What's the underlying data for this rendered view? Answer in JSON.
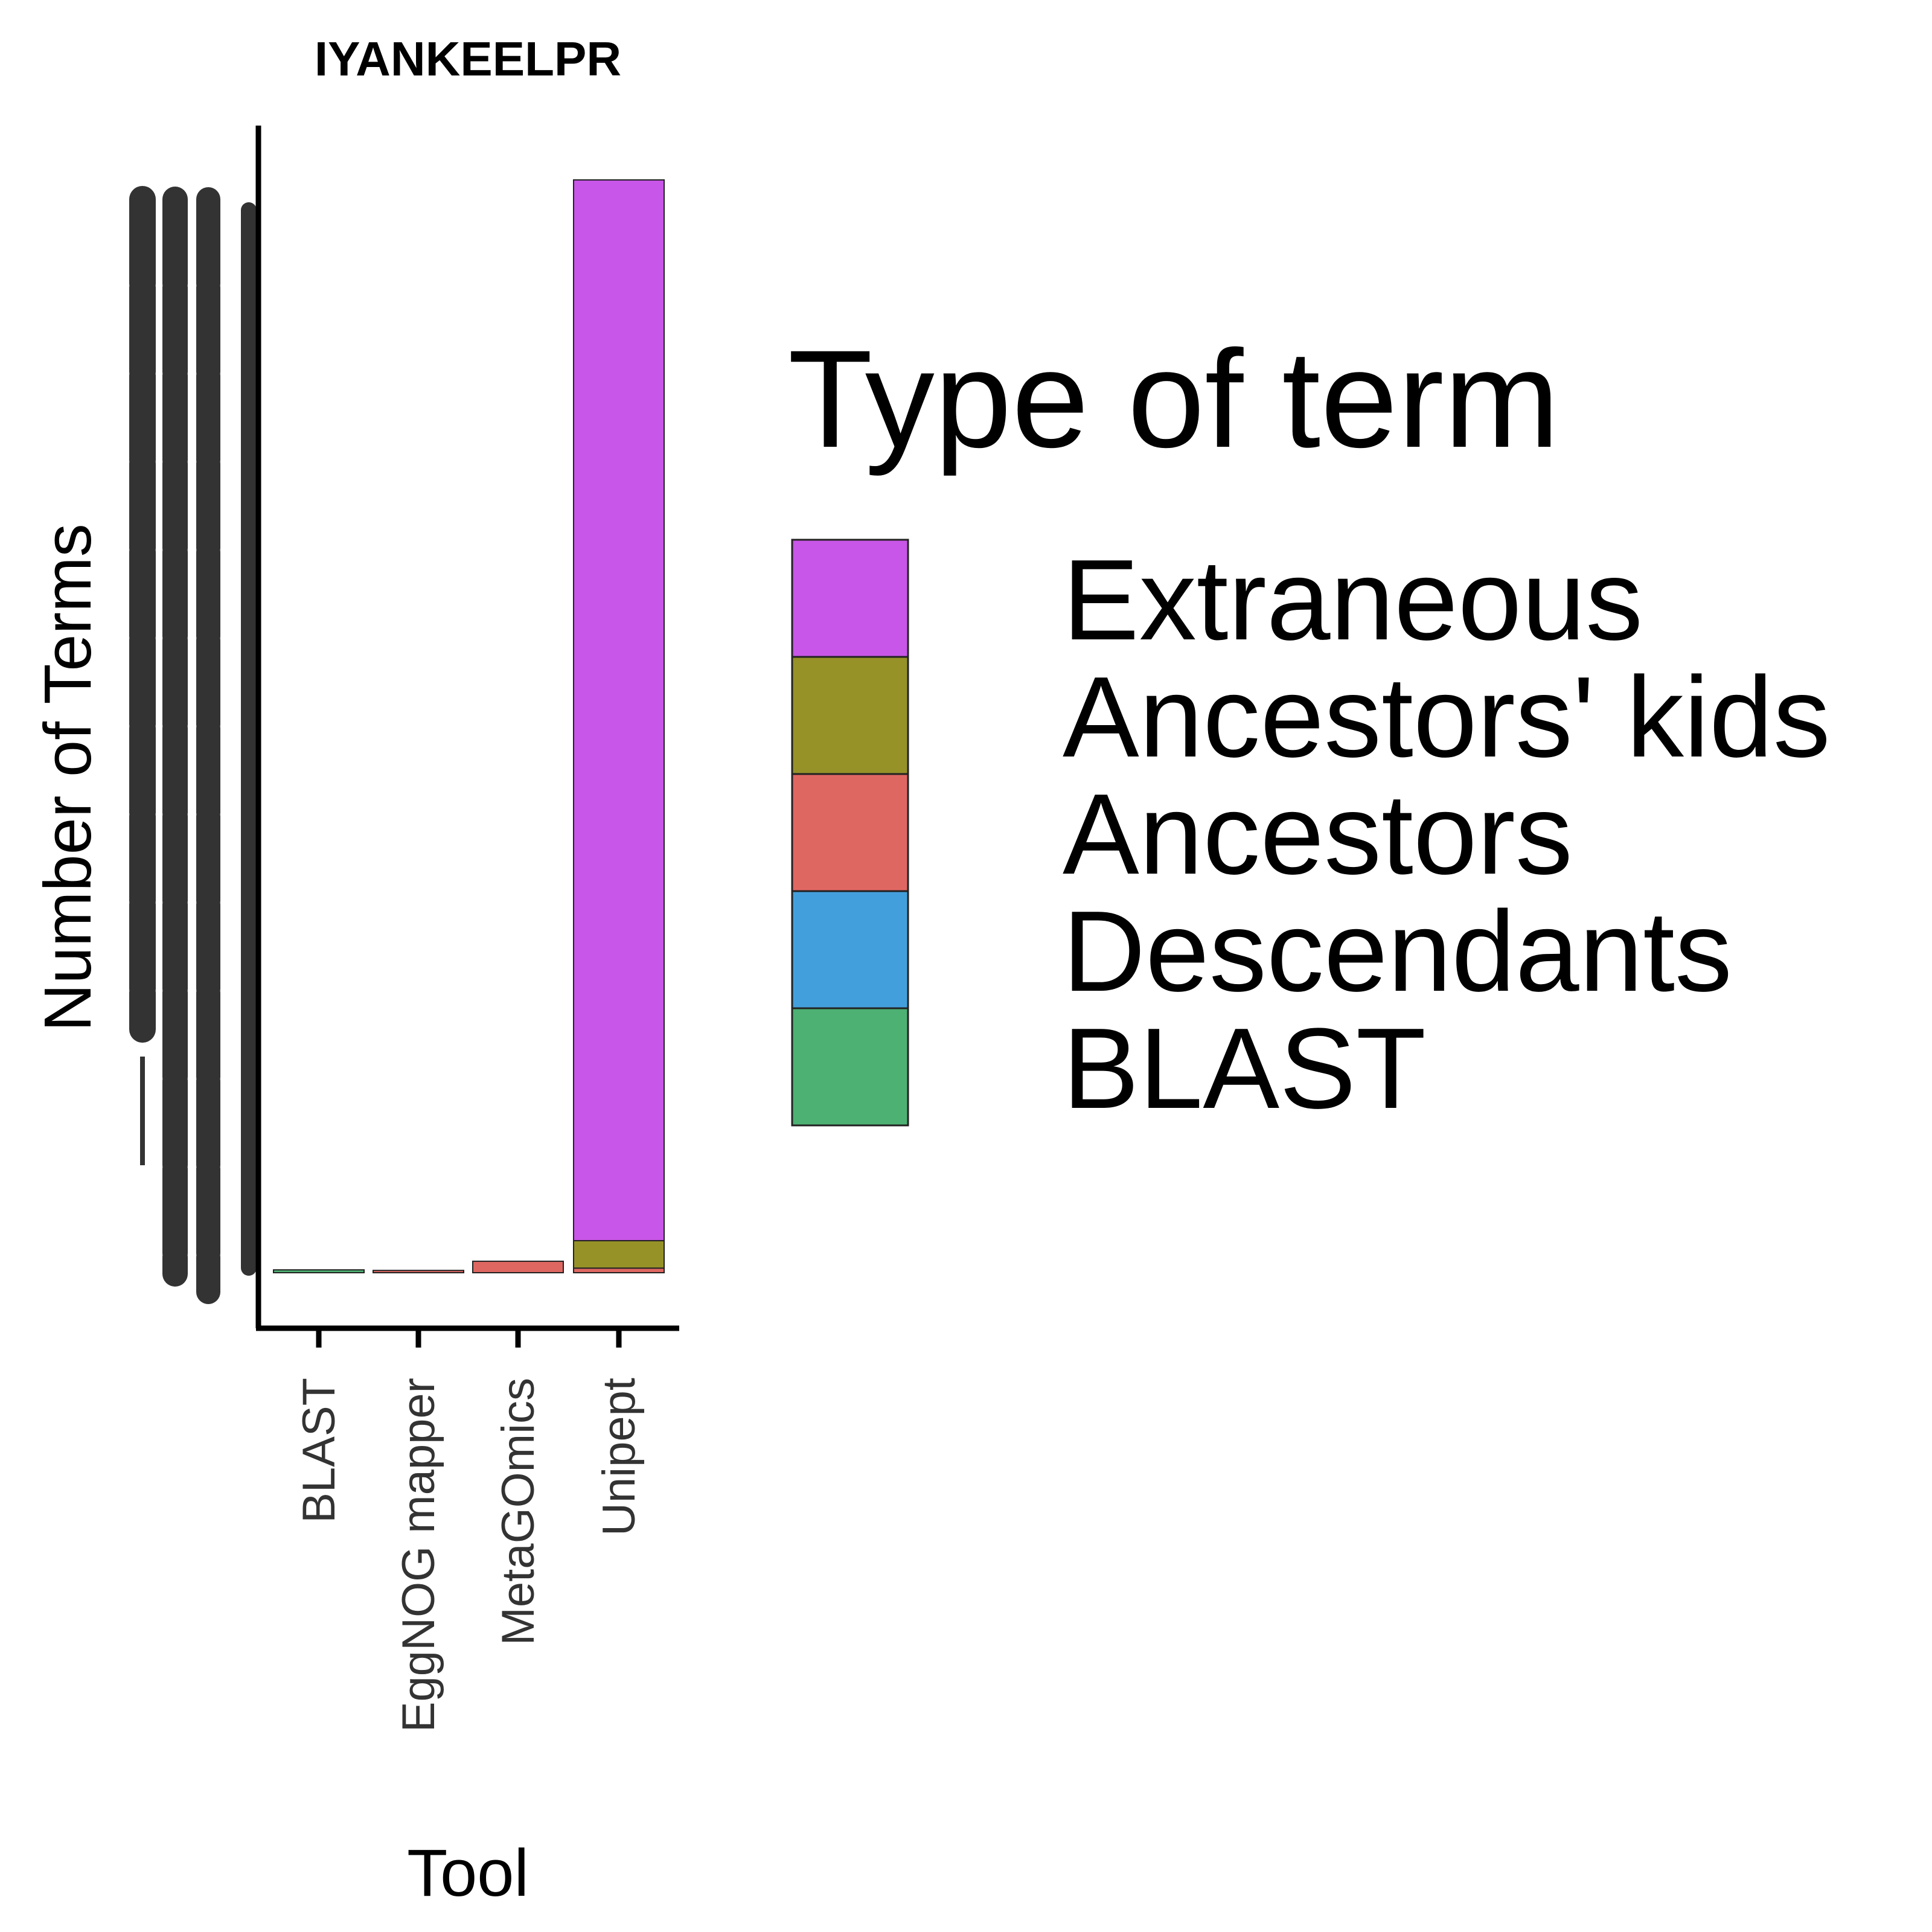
{
  "chart_data": {
    "type": "bar",
    "stacked": true,
    "title": "IYANKEELPR",
    "xlabel": "Tool",
    "ylabel": "Number of Terms",
    "categories": [
      "BLAST",
      "EggNOG mapper",
      "MetaGOmics",
      "Unipept"
    ],
    "ylim": [
      0,
      1910
    ],
    "y_tick_labels_legible": false,
    "series": [
      {
        "name": "BLAST",
        "color": "#4DB173",
        "values": [
          5,
          0,
          0,
          0
        ]
      },
      {
        "name": "Descendants",
        "color": "#439FDC",
        "values": [
          0,
          0,
          0,
          0
        ]
      },
      {
        "name": "Ancestors",
        "color": "#DF6762",
        "values": [
          0,
          4,
          20,
          8
        ]
      },
      {
        "name": "Ancestors' kids",
        "color": "#969228",
        "values": [
          0,
          0,
          0,
          48
        ]
      },
      {
        "name": "Extraneous",
        "color": "#C856E8",
        "values": [
          0,
          0,
          0,
          1854
        ]
      }
    ],
    "legend": {
      "title": "Type of term",
      "placement": "right",
      "order": [
        "Extraneous",
        "Ancestors' kids",
        "Ancestors",
        "Descendants",
        "BLAST"
      ]
    }
  }
}
